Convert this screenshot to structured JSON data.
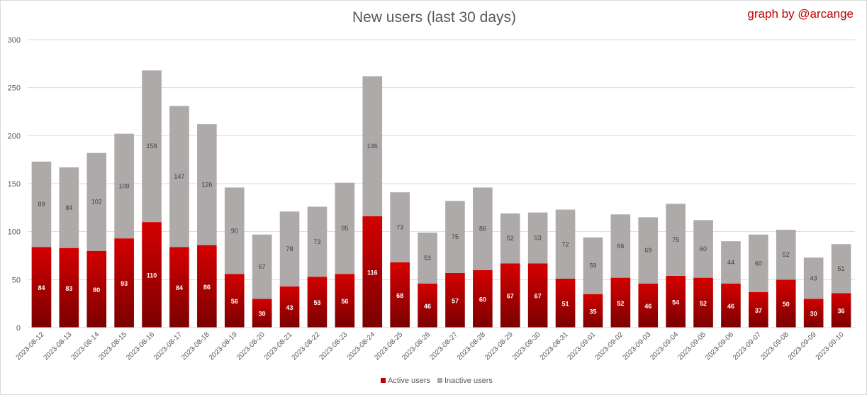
{
  "chart_data": {
    "type": "bar",
    "stacked": true,
    "title": "New users (last 30 days)",
    "credit": "graph by @arcange",
    "ylim": [
      0,
      300
    ],
    "yticks": [
      0,
      50,
      100,
      150,
      200,
      250,
      300
    ],
    "grid": true,
    "legend_position": "bottom",
    "categories": [
      "2023-08-12",
      "2023-08-13",
      "2023-08-14",
      "2023-08-15",
      "2023-08-16",
      "2023-08-17",
      "2023-08-18",
      "2023-08-19",
      "2023-08-20",
      "2023-08-21",
      "2023-08-22",
      "2023-08-23",
      "2023-08-24",
      "2023-08-25",
      "2023-08-26",
      "2023-08-27",
      "2023-08-28",
      "2023-08-29",
      "2023-08-30",
      "2023-08-31",
      "2023-09-01",
      "2023-09-02",
      "2023-09-03",
      "2023-09-04",
      "2023-09-05",
      "2023-09-06",
      "2023-09-07",
      "2023-09-08",
      "2023-09-09",
      "2023-09-10"
    ],
    "series": [
      {
        "name": "Active users",
        "color": "#c00000",
        "values": [
          84,
          83,
          80,
          93,
          110,
          84,
          86,
          56,
          30,
          43,
          53,
          56,
          116,
          68,
          46,
          57,
          60,
          67,
          67,
          51,
          35,
          52,
          46,
          54,
          52,
          46,
          37,
          50,
          30,
          36
        ]
      },
      {
        "name": "Inactive users",
        "color": "#aeaaaa",
        "values": [
          89,
          84,
          102,
          109,
          158,
          147,
          126,
          90,
          67,
          78,
          73,
          95,
          146,
          73,
          53,
          75,
          86,
          52,
          53,
          72,
          59,
          66,
          69,
          75,
          60,
          44,
          60,
          52,
          43,
          51
        ]
      }
    ]
  }
}
